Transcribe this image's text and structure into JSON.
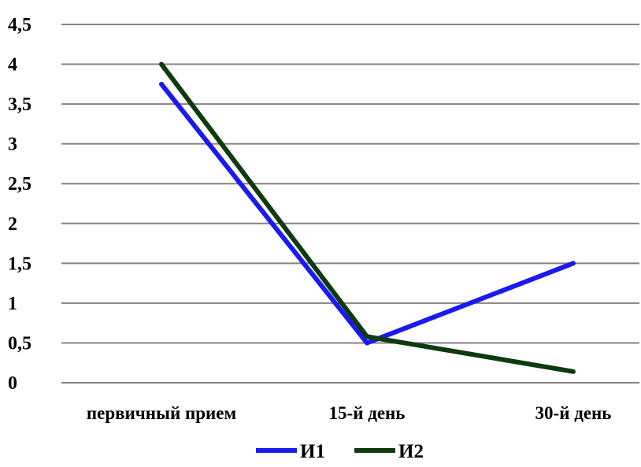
{
  "chart_data": {
    "type": "line",
    "title": "",
    "xlabel": "",
    "ylabel": "",
    "categories": [
      "первичный прием",
      "15-й день",
      "30-й день"
    ],
    "ylim": [
      0,
      4.5
    ],
    "y_ticks": [
      0,
      0.5,
      1,
      1.5,
      2,
      2.5,
      3,
      3.5,
      4,
      4.5
    ],
    "y_tick_labels": [
      "0",
      "0,5",
      "1",
      "1,5",
      "2",
      "2,5",
      "3",
      "3,5",
      "4",
      "4,5"
    ],
    "grid": true,
    "legend_position": "bottom",
    "series": [
      {
        "name": "И1",
        "color": "#1a1aee",
        "values": [
          3.75,
          0.5,
          1.5
        ]
      },
      {
        "name": "И2",
        "color": "#0d3b0d",
        "values": [
          4.0,
          0.58,
          0.14
        ]
      }
    ]
  }
}
